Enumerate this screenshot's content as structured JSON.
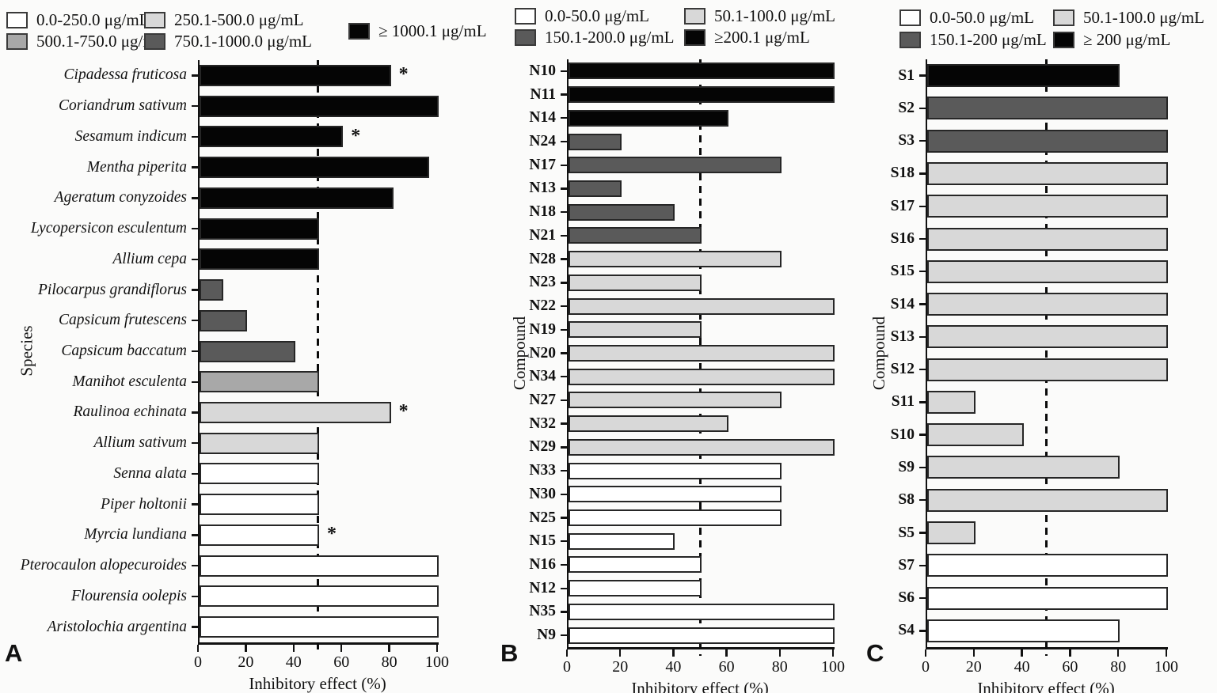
{
  "figure_caption_letters": [
    "A",
    "B",
    "C"
  ],
  "colors": {
    "white": "#ffffff",
    "light_gray": "#d8d8d8",
    "medium_gray": "#a8a8a8",
    "dark_gray": "#5a5a5a",
    "black": "#050505",
    "axis": "#111111"
  },
  "chart_data": [
    {
      "panel": "A",
      "type": "bar",
      "orientation": "horizontal",
      "title": "",
      "xlabel": "Inhibitory effect (%)",
      "ylabel": "Species",
      "xlim": [
        0,
        100
      ],
      "xticks": [
        0,
        20,
        40,
        60,
        80,
        100
      ],
      "reference_line_x": 50,
      "grid": false,
      "legend_position": "top",
      "legend": [
        {
          "label": "0.0-250.0 μg/mL",
          "color": "white"
        },
        {
          "label": "250.1-500.0 μg/mL",
          "color": "light_gray"
        },
        {
          "label": "500.1-750.0 μg/mL",
          "color": "medium_gray"
        },
        {
          "label": "750.1-1000.0 μg/mL",
          "color": "dark_gray"
        },
        {
          "label": "≥ 1000.1 μg/mL",
          "color": "black"
        }
      ],
      "bars": [
        {
          "label": "Cipadessa fruticosa",
          "value": 80,
          "color": "black",
          "note": "*"
        },
        {
          "label": "Coriandrum sativum",
          "value": 100,
          "color": "black",
          "note": ""
        },
        {
          "label": "Sesamum indicum",
          "value": 60,
          "color": "black",
          "note": "*"
        },
        {
          "label": "Mentha piperita",
          "value": 96,
          "color": "black",
          "note": ""
        },
        {
          "label": "Ageratum conyzoides",
          "value": 81,
          "color": "black",
          "note": ""
        },
        {
          "label": "Lycopersicon esculentum",
          "value": 50,
          "color": "black",
          "note": ""
        },
        {
          "label": "Allium cepa",
          "value": 50,
          "color": "black",
          "note": ""
        },
        {
          "label": "Pilocarpus grandiflorus",
          "value": 10,
          "color": "dark_gray",
          "note": ""
        },
        {
          "label": "Capsicum frutescens",
          "value": 20,
          "color": "dark_gray",
          "note": ""
        },
        {
          "label": "Capsicum baccatum",
          "value": 40,
          "color": "dark_gray",
          "note": ""
        },
        {
          "label": "Manihot esculenta",
          "value": 50,
          "color": "medium_gray",
          "note": ""
        },
        {
          "label": "Raulinoa echinata",
          "value": 80,
          "color": "light_gray",
          "note": "*"
        },
        {
          "label": "Allium sativum",
          "value": 50,
          "color": "light_gray",
          "note": ""
        },
        {
          "label": "Senna alata",
          "value": 50,
          "color": "white",
          "note": ""
        },
        {
          "label": "Piper holtonii",
          "value": 50,
          "color": "white",
          "note": ""
        },
        {
          "label": "Myrcia lundiana",
          "value": 50,
          "color": "white",
          "note": "*"
        },
        {
          "label": "Pterocaulon alopecuroides",
          "value": 100,
          "color": "white",
          "note": ""
        },
        {
          "label": "Flourensia oolepis",
          "value": 100,
          "color": "white",
          "note": ""
        },
        {
          "label": "Aristolochia argentina",
          "value": 100,
          "color": "white",
          "note": ""
        }
      ]
    },
    {
      "panel": "B",
      "type": "bar",
      "orientation": "horizontal",
      "title": "",
      "xlabel": "Inhibitory effect (%)",
      "ylabel": "Compound",
      "xlim": [
        0,
        100
      ],
      "xticks": [
        0,
        20,
        40,
        60,
        80,
        100
      ],
      "reference_line_x": 50,
      "grid": false,
      "legend_position": "top",
      "legend": [
        {
          "label": "0.0-50.0 μg/mL",
          "color": "white"
        },
        {
          "label": "50.1-100.0 μg/mL",
          "color": "light_gray"
        },
        {
          "label": "150.1-200.0 μg/mL",
          "color": "dark_gray"
        },
        {
          "label": "≥200.1 μg/mL",
          "color": "black"
        }
      ],
      "bars": [
        {
          "label": "N10",
          "value": 100,
          "color": "black",
          "note": ""
        },
        {
          "label": "N11",
          "value": 100,
          "color": "black",
          "note": ""
        },
        {
          "label": "N14",
          "value": 60,
          "color": "black",
          "note": ""
        },
        {
          "label": "N24",
          "value": 20,
          "color": "dark_gray",
          "note": ""
        },
        {
          "label": "N17",
          "value": 80,
          "color": "dark_gray",
          "note": ""
        },
        {
          "label": "N13",
          "value": 20,
          "color": "dark_gray",
          "note": ""
        },
        {
          "label": "N18",
          "value": 40,
          "color": "dark_gray",
          "note": ""
        },
        {
          "label": "N21",
          "value": 50,
          "color": "dark_gray",
          "note": ""
        },
        {
          "label": "N28",
          "value": 80,
          "color": "light_gray",
          "note": ""
        },
        {
          "label": "N23",
          "value": 50,
          "color": "light_gray",
          "note": ""
        },
        {
          "label": "N22",
          "value": 100,
          "color": "light_gray",
          "note": ""
        },
        {
          "label": "N19",
          "value": 50,
          "color": "light_gray",
          "note": ""
        },
        {
          "label": "N20",
          "value": 100,
          "color": "light_gray",
          "note": ""
        },
        {
          "label": "N34",
          "value": 100,
          "color": "light_gray",
          "note": ""
        },
        {
          "label": "N27",
          "value": 80,
          "color": "light_gray",
          "note": ""
        },
        {
          "label": "N32",
          "value": 60,
          "color": "light_gray",
          "note": ""
        },
        {
          "label": "N29",
          "value": 100,
          "color": "light_gray",
          "note": ""
        },
        {
          "label": "N33",
          "value": 80,
          "color": "white",
          "note": ""
        },
        {
          "label": "N30",
          "value": 80,
          "color": "white",
          "note": ""
        },
        {
          "label": "N25",
          "value": 80,
          "color": "white",
          "note": ""
        },
        {
          "label": "N15",
          "value": 40,
          "color": "white",
          "note": ""
        },
        {
          "label": "N16",
          "value": 50,
          "color": "white",
          "note": ""
        },
        {
          "label": "N12",
          "value": 50,
          "color": "white",
          "note": ""
        },
        {
          "label": "N35",
          "value": 100,
          "color": "white",
          "note": ""
        },
        {
          "label": "N9",
          "value": 100,
          "color": "white",
          "note": ""
        }
      ]
    },
    {
      "panel": "C",
      "type": "bar",
      "orientation": "horizontal",
      "title": "",
      "xlabel": "Inhibitory effect (%)",
      "ylabel": "Compound",
      "xlim": [
        0,
        100
      ],
      "xticks": [
        0,
        20,
        40,
        60,
        80,
        100
      ],
      "reference_line_x": 50,
      "grid": false,
      "legend_position": "top",
      "legend": [
        {
          "label": "0.0-50.0 μg/mL",
          "color": "white"
        },
        {
          "label": "50.1-100.0 μg/mL",
          "color": "light_gray"
        },
        {
          "label": "150.1-200 μg/mL",
          "color": "dark_gray"
        },
        {
          "label": "≥ 200 μg/mL",
          "color": "black"
        }
      ],
      "bars": [
        {
          "label": "S1",
          "value": 80,
          "color": "black",
          "note": ""
        },
        {
          "label": "S2",
          "value": 100,
          "color": "dark_gray",
          "note": ""
        },
        {
          "label": "S3",
          "value": 100,
          "color": "dark_gray",
          "note": ""
        },
        {
          "label": "S18",
          "value": 100,
          "color": "light_gray",
          "note": ""
        },
        {
          "label": "S17",
          "value": 100,
          "color": "light_gray",
          "note": ""
        },
        {
          "label": "S16",
          "value": 100,
          "color": "light_gray",
          "note": ""
        },
        {
          "label": "S15",
          "value": 100,
          "color": "light_gray",
          "note": ""
        },
        {
          "label": "S14",
          "value": 100,
          "color": "light_gray",
          "note": ""
        },
        {
          "label": "S13",
          "value": 100,
          "color": "light_gray",
          "note": ""
        },
        {
          "label": "S12",
          "value": 100,
          "color": "light_gray",
          "note": ""
        },
        {
          "label": "S11",
          "value": 20,
          "color": "light_gray",
          "note": ""
        },
        {
          "label": "S10",
          "value": 40,
          "color": "light_gray",
          "note": ""
        },
        {
          "label": "S9",
          "value": 80,
          "color": "light_gray",
          "note": ""
        },
        {
          "label": "S8",
          "value": 100,
          "color": "light_gray",
          "note": ""
        },
        {
          "label": "S5",
          "value": 20,
          "color": "light_gray",
          "note": ""
        },
        {
          "label": "S7",
          "value": 100,
          "color": "white",
          "note": ""
        },
        {
          "label": "S6",
          "value": 100,
          "color": "white",
          "note": ""
        },
        {
          "label": "S4",
          "value": 80,
          "color": "white",
          "note": ""
        }
      ]
    }
  ]
}
